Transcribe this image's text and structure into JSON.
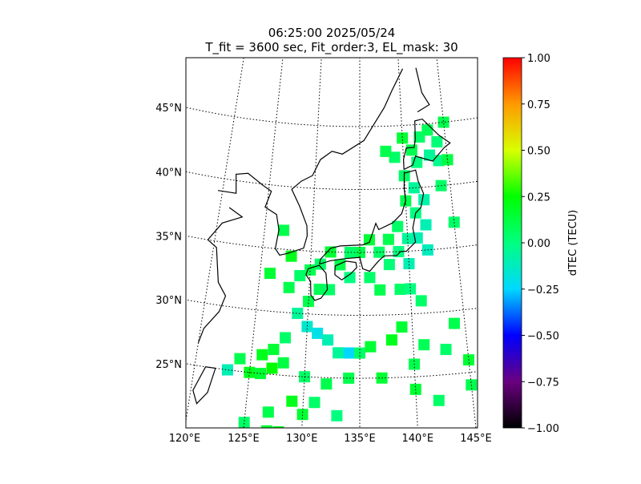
{
  "chart_data": {
    "type": "map",
    "title": "06:25:00 2025/05/24",
    "subtitle": "T_fit = 3600 sec, Fit_order:3, EL_mask: 30",
    "xticks": [
      {
        "value": 120,
        "label": "120°E"
      },
      {
        "value": 125,
        "label": "125°E"
      },
      {
        "value": 130,
        "label": "130°E"
      },
      {
        "value": 135,
        "label": "135°E"
      },
      {
        "value": 140,
        "label": "140°E"
      },
      {
        "value": 145,
        "label": "145°E"
      }
    ],
    "yticks": [
      {
        "value": 25,
        "label": "25°N"
      },
      {
        "value": 30,
        "label": "30°N"
      },
      {
        "value": 35,
        "label": "35°N"
      },
      {
        "value": 40,
        "label": "40°N"
      },
      {
        "value": 45,
        "label": "45°N"
      }
    ],
    "grid": true,
    "colorbar": {
      "label": "dTEC (TECU)",
      "lim": [
        -1,
        1
      ],
      "ticks": [
        {
          "value": -1,
          "label": "−1.00"
        },
        {
          "value": -0.75,
          "label": "−0.75"
        },
        {
          "value": -0.5,
          "label": "−0.50"
        },
        {
          "value": -0.25,
          "label": "−0.25"
        },
        {
          "value": 0,
          "label": "0.00"
        },
        {
          "value": 0.25,
          "label": "0.25"
        },
        {
          "value": 0.5,
          "label": "0.50"
        },
        {
          "value": 0.75,
          "label": "0.75"
        },
        {
          "value": 1,
          "label": "1.00"
        }
      ],
      "colormap": [
        "#000000",
        "#6a0080",
        "#0000ff",
        "#00d8ff",
        "#00ff80",
        "#00ff00",
        "#d8ff00",
        "#ff9a00",
        "#ff0000"
      ]
    },
    "x": [
      141,
      142,
      143,
      144,
      145,
      140,
      139,
      141.5,
      143,
      144,
      145,
      138,
      140,
      141,
      142,
      140,
      141,
      142,
      139,
      140,
      141,
      142,
      138,
      137,
      139,
      140,
      136,
      135,
      134,
      133,
      132,
      131,
      130,
      129,
      131,
      130,
      132,
      134,
      136,
      138,
      137,
      139,
      140,
      141,
      129,
      130,
      131,
      128,
      132,
      133,
      134,
      135,
      136,
      127,
      126,
      124,
      123,
      125,
      126,
      127,
      128,
      130,
      132,
      129,
      130,
      127,
      125,
      127,
      128,
      131,
      133,
      140,
      142,
      140,
      141,
      143,
      144,
      138,
      139,
      134,
      137,
      145,
      145,
      145,
      144,
      127,
      128,
      126,
      128
    ],
    "y": [
      43,
      44,
      44.5,
      43.5,
      45,
      44,
      42.5,
      42,
      42.5,
      42,
      42,
      43,
      41,
      40,
      39,
      39,
      38,
      37,
      37,
      36,
      36,
      35,
      36,
      35,
      35,
      34,
      36,
      35,
      35,
      34,
      35,
      34,
      33.5,
      33,
      32,
      31,
      32,
      33,
      33,
      34,
      32,
      32,
      32,
      31,
      30,
      29,
      28.5,
      28,
      28,
      27,
      27,
      27,
      27.5,
      27,
      26.5,
      26,
      25,
      25,
      25,
      25.5,
      26,
      25,
      24.5,
      23,
      22,
      22,
      21,
      20.5,
      20.5,
      23,
      22,
      24,
      23,
      26,
      27.5,
      27,
      29,
      28,
      29,
      25,
      25,
      26,
      24,
      37,
      40,
      36.5,
      34.5,
      33,
      32
    ],
    "values": [
      0.1,
      0.05,
      0.08,
      0.02,
      0.1,
      0.15,
      0.05,
      0,
      -0.05,
      -0.02,
      0.12,
      0.1,
      0.05,
      -0.05,
      -0.08,
      0.1,
      0,
      -0.1,
      0.05,
      -0.05,
      -0.1,
      -0.12,
      0.1,
      0.05,
      0,
      -0.1,
      0.15,
      0.1,
      0.05,
      0.1,
      0.15,
      0.05,
      0.1,
      0.05,
      0.08,
      0.1,
      0.05,
      0,
      0.05,
      0.02,
      0.1,
      0.05,
      0,
      0.05,
      -0.05,
      -0.15,
      -0.2,
      0.05,
      -0.1,
      -0.05,
      -0.25,
      0.05,
      0.15,
      0.15,
      0.2,
      0.1,
      -0.1,
      0.2,
      0.15,
      0.25,
      0.12,
      0.05,
      0.1,
      0.2,
      0.15,
      0.1,
      0.05,
      0.15,
      0.2,
      0.05,
      0,
      0.15,
      0.05,
      0.1,
      0.08,
      0.05,
      0.1,
      0.2,
      0.15,
      0.1,
      0.15,
      0.15,
      0.1,
      0.05,
      0.05,
      0.1,
      0.2,
      0.15,
      0.1
    ]
  }
}
